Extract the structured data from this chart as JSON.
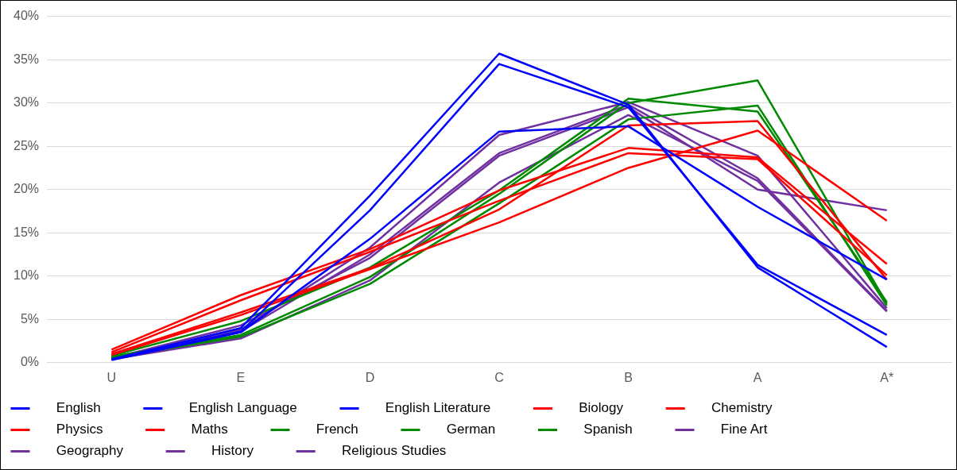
{
  "chart_data": {
    "type": "line",
    "categories": [
      "U",
      "E",
      "D",
      "C",
      "B",
      "A",
      "A*"
    ],
    "series": [
      {
        "name": "English",
        "color": "#0000ff",
        "values": [
          0.4,
          4.0,
          19.3,
          35.7,
          29.8,
          11.0,
          1.8
        ]
      },
      {
        "name": "English Language",
        "color": "#0000ff",
        "values": [
          0.4,
          3.6,
          17.6,
          34.5,
          29.5,
          11.3,
          3.2
        ]
      },
      {
        "name": "English Literature",
        "color": "#0000ff",
        "values": [
          0.3,
          3.5,
          14.3,
          26.7,
          27.3,
          18.0,
          9.6
        ]
      },
      {
        "name": "Biology",
        "color": "#ff0000",
        "values": [
          1.5,
          7.8,
          13.1,
          19.9,
          24.8,
          23.7,
          11.4
        ]
      },
      {
        "name": "Chemistry",
        "color": "#ff0000",
        "values": [
          1.2,
          7.2,
          12.8,
          18.7,
          24.2,
          23.5,
          10.1
        ]
      },
      {
        "name": "Physics",
        "color": "#ff0000",
        "values": [
          1.0,
          5.8,
          10.9,
          17.7,
          27.4,
          27.9,
          9.6
        ]
      },
      {
        "name": "Maths",
        "color": "#ff0000",
        "values": [
          0.9,
          5.5,
          10.8,
          16.2,
          22.5,
          26.8,
          16.4
        ]
      },
      {
        "name": "French",
        "color": "#008a00",
        "values": [
          0.8,
          4.8,
          11.0,
          19.9,
          30.5,
          29.0,
          7.0
        ]
      },
      {
        "name": "German",
        "color": "#008a00",
        "values": [
          0.6,
          3.0,
          9.1,
          18.4,
          28.1,
          29.7,
          6.6
        ]
      },
      {
        "name": "Spanish",
        "color": "#008a00",
        "values": [
          0.7,
          3.2,
          9.9,
          19.5,
          30.0,
          32.6,
          6.8
        ]
      },
      {
        "name": "Fine Art",
        "color": "#7030a0",
        "values": [
          0.6,
          3.8,
          13.3,
          26.3,
          30.1,
          23.9,
          6.3
        ]
      },
      {
        "name": "Geography",
        "color": "#7030a0",
        "values": [
          0.5,
          3.6,
          12.5,
          24.2,
          29.8,
          21.3,
          6.0
        ]
      },
      {
        "name": "History",
        "color": "#7030a0",
        "values": [
          0.5,
          4.3,
          12.1,
          23.9,
          29.5,
          20.0,
          17.6
        ]
      },
      {
        "name": "Religious Studies",
        "color": "#7030a0",
        "values": [
          0.4,
          2.8,
          9.5,
          20.8,
          28.6,
          21.0,
          5.9
        ]
      }
    ],
    "ylim": [
      0,
      40
    ],
    "yticks": [
      {
        "value": 0,
        "label": "0%"
      },
      {
        "value": 5,
        "label": "5%"
      },
      {
        "value": 10,
        "label": "10%"
      },
      {
        "value": 15,
        "label": "15%"
      },
      {
        "value": 20,
        "label": "20%"
      },
      {
        "value": 25,
        "label": "25%"
      },
      {
        "value": 30,
        "label": "30%"
      },
      {
        "value": 35,
        "label": "35%"
      },
      {
        "value": 40,
        "label": "40%"
      }
    ],
    "grid": "y",
    "legend": "bottom",
    "marker": "none",
    "line_style": "solid"
  }
}
